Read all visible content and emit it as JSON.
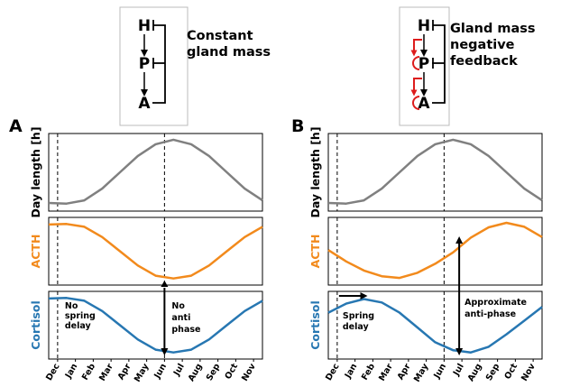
{
  "schematics": [
    {
      "nodes": [
        "H",
        "P",
        "A"
      ],
      "title_lines": [
        "Constant",
        "gland mass"
      ],
      "loop_arrows": false
    },
    {
      "nodes": [
        "H",
        "P",
        "A"
      ],
      "title_lines": [
        "Gland mass",
        "negative",
        "feedback"
      ],
      "loop_arrows": true
    }
  ],
  "colors": {
    "day_length": "#808080",
    "acth": "#f28a1c",
    "cortisol": "#2777b2",
    "loop": "#dd1c1c"
  },
  "chart_data": [
    {
      "type": "line",
      "panel_label": "A",
      "x_ticks": [
        "Dec",
        "Jan",
        "Feb",
        "Mar",
        "Apr",
        "May",
        "Jun",
        "Jul",
        "Aug",
        "Sep",
        "Oct",
        "Nov"
      ],
      "x_range": [
        -0.5,
        11.5
      ],
      "dashed_lines_at": [
        "Dec",
        "Jun"
      ],
      "subplots": [
        {
          "ylabel": "Day length [h]",
          "series": [
            {
              "values": [
                0.03,
                0.02,
                0.07,
                0.25,
                0.5,
                0.75,
                0.93,
                1.0,
                0.93,
                0.75,
                0.5,
                0.25,
                0.07
              ]
            }
          ]
        },
        {
          "ylabel": "ACTH",
          "series": [
            {
              "values": [
                0.97,
                0.98,
                0.93,
                0.75,
                0.5,
                0.25,
                0.07,
                0.02,
                0.07,
                0.25,
                0.5,
                0.75,
                0.93
              ]
            }
          ]
        },
        {
          "ylabel": "Cortisol",
          "series": [
            {
              "values": [
                0.97,
                0.98,
                0.93,
                0.75,
                0.5,
                0.25,
                0.07,
                0.02,
                0.07,
                0.25,
                0.5,
                0.75,
                0.93
              ]
            }
          ]
        }
      ],
      "annotation": {
        "lines": [
          "No",
          "spring",
          "delay"
        ]
      },
      "phase_arrow": {
        "label_lines": [
          "No",
          "anti",
          "phase"
        ]
      }
    },
    {
      "type": "line",
      "panel_label": "B",
      "x_ticks": [
        "Dec",
        "Jan",
        "Feb",
        "Mar",
        "Apr",
        "May",
        "Jun",
        "Jul",
        "Aug",
        "Sep",
        "Oct",
        "Nov"
      ],
      "x_range": [
        -0.5,
        11.5
      ],
      "dashed_lines_at": [
        "Dec",
        "Jun"
      ],
      "subplots": [
        {
          "ylabel": "Day length [h]",
          "series": [
            {
              "values": [
                0.03,
                0.02,
                0.07,
                0.25,
                0.5,
                0.75,
                0.93,
                1.0,
                0.93,
                0.75,
                0.5,
                0.25,
                0.07
              ]
            }
          ]
        },
        {
          "ylabel": "ACTH",
          "series": [
            {
              "values": [
                0.52,
                0.32,
                0.16,
                0.06,
                0.03,
                0.12,
                0.28,
                0.48,
                0.74,
                0.92,
                1.0,
                0.93,
                0.75
              ]
            }
          ]
        },
        {
          "ylabel": "Cortisol",
          "series": [
            {
              "values": [
                0.72,
                0.88,
                0.96,
                0.9,
                0.72,
                0.46,
                0.2,
                0.06,
                0.02,
                0.12,
                0.34,
                0.58,
                0.82
              ]
            }
          ]
        }
      ],
      "annotation": {
        "lines": [
          "Spring",
          "delay"
        ]
      },
      "phase_arrow": {
        "label_lines": [
          "Approximate",
          "anti-phase"
        ]
      }
    }
  ]
}
